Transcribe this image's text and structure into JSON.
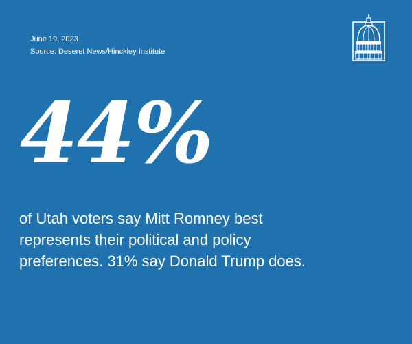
{
  "meta": {
    "date": "June 19, 2023",
    "source": "Source: Deseret News/Hinckley Institute"
  },
  "logo": {
    "icon": "capitol-dome-icon"
  },
  "headline": {
    "stat": "44%"
  },
  "description": {
    "lines": [
      "of Utah voters say Mitt Romney best",
      "represents their political and policy",
      "preferences. 31% say Donald Trump does."
    ]
  },
  "colors": {
    "background": "#1f72ae",
    "text": "#ffffff"
  }
}
